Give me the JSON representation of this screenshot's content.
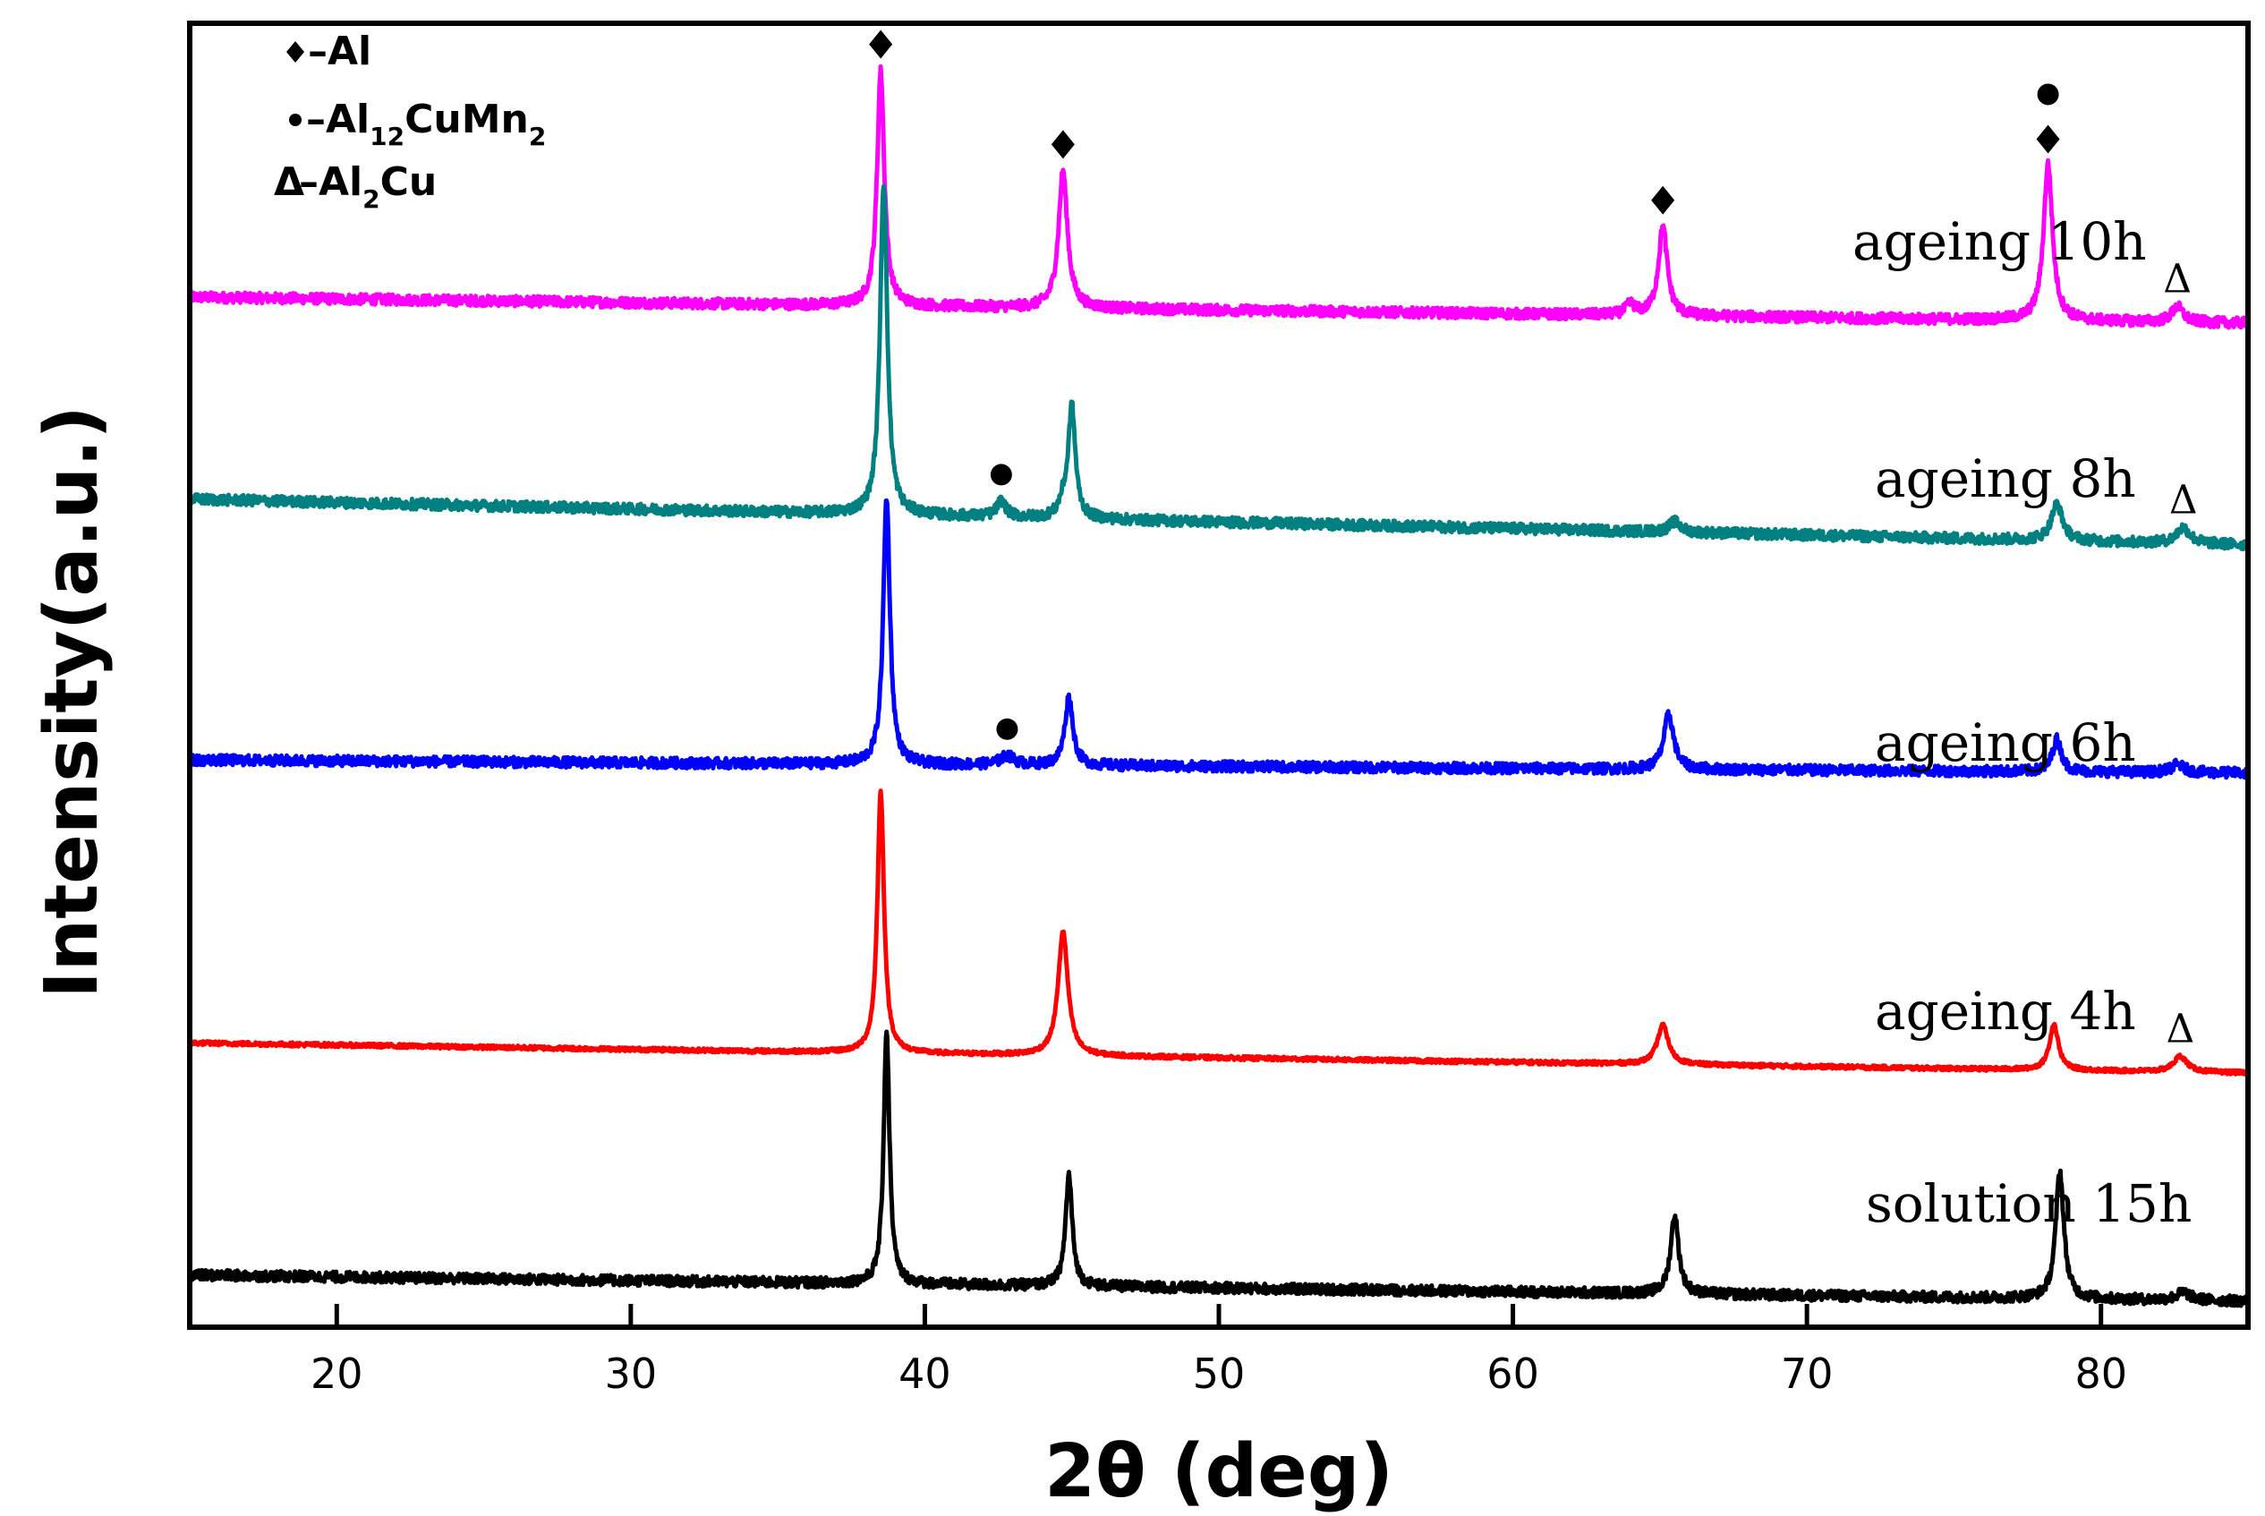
{
  "chart_data": {
    "type": "line",
    "title": "",
    "xlabel": "2θ (deg)",
    "ylabel": "Intensity(a.u.)",
    "xlim": [
      15,
      85
    ],
    "xticks": [
      20,
      30,
      40,
      50,
      60,
      70,
      80
    ],
    "xtick_labels": [
      "20",
      "30",
      "40",
      "50",
      "60",
      "70",
      "80"
    ],
    "yticks_shown": false,
    "legend": {
      "position": "top-left",
      "entries": [
        {
          "marker": "◆",
          "text": "–Al",
          "sub": "",
          "text2": "",
          "sub2": ""
        },
        {
          "marker": "●",
          "text": "–Al",
          "sub": "12",
          "text2": "CuMn",
          "sub2": "2"
        },
        {
          "marker": "Δ",
          "text": "–Al",
          "sub": "2",
          "text2": "Cu",
          "sub2": ""
        }
      ]
    },
    "series": [
      {
        "name": "ageing 10h",
        "color": "#ff00ff",
        "baseline_start": 0.79,
        "baseline_end": 0.77,
        "noise": 0.004,
        "peaks": [
          {
            "x": 38.5,
            "h": 0.18,
            "w": 0.16,
            "marker": "◆"
          },
          {
            "x": 44.7,
            "h": 0.105,
            "w": 0.2,
            "marker": "◆"
          },
          {
            "x": 64.0,
            "h": 0.008,
            "w": 0.2,
            "marker": ""
          },
          {
            "x": 65.1,
            "h": 0.068,
            "w": 0.2,
            "marker": "◆"
          },
          {
            "x": 78.2,
            "h": 0.12,
            "w": 0.2,
            "marker": "◆●"
          },
          {
            "x": 82.6,
            "h": 0.012,
            "w": 0.25,
            "marker": "Δ"
          }
        ]
      },
      {
        "name": "ageing 8h",
        "color": "#008080",
        "baseline_start": 0.635,
        "baseline_end": 0.6,
        "noise": 0.004,
        "peaks": [
          {
            "x": 38.6,
            "h": 0.255,
            "w": 0.16,
            "marker": ""
          },
          {
            "x": 42.6,
            "h": 0.012,
            "w": 0.2,
            "marker": "●"
          },
          {
            "x": 44.7,
            "h": 0.01,
            "w": 0.18,
            "marker": ""
          },
          {
            "x": 45.0,
            "h": 0.085,
            "w": 0.16,
            "marker": ""
          },
          {
            "x": 65.5,
            "h": 0.008,
            "w": 0.25,
            "marker": ""
          },
          {
            "x": 78.5,
            "h": 0.028,
            "w": 0.25,
            "marker": ""
          },
          {
            "x": 82.8,
            "h": 0.012,
            "w": 0.3,
            "marker": "Δ"
          }
        ]
      },
      {
        "name": "ageing 6h",
        "color": "#0000ff",
        "baseline_start": 0.435,
        "baseline_end": 0.425,
        "noise": 0.004,
        "peaks": [
          {
            "x": 38.7,
            "h": 0.205,
            "w": 0.15,
            "marker": ""
          },
          {
            "x": 42.8,
            "h": 0.007,
            "w": 0.3,
            "marker": "●"
          },
          {
            "x": 44.9,
            "h": 0.052,
            "w": 0.18,
            "marker": ""
          },
          {
            "x": 65.3,
            "h": 0.042,
            "w": 0.22,
            "marker": ""
          },
          {
            "x": 78.5,
            "h": 0.025,
            "w": 0.2,
            "marker": ""
          },
          {
            "x": 82.6,
            "h": 0.006,
            "w": 0.3,
            "marker": ""
          }
        ]
      },
      {
        "name": "ageing 4h",
        "color": "#ff0000",
        "baseline_start": 0.218,
        "baseline_end": 0.195,
        "noise": 0.0015,
        "peaks": [
          {
            "x": 38.5,
            "h": 0.2,
            "w": 0.15,
            "marker": ""
          },
          {
            "x": 44.7,
            "h": 0.095,
            "w": 0.22,
            "marker": ""
          },
          {
            "x": 65.1,
            "h": 0.03,
            "w": 0.25,
            "marker": ""
          },
          {
            "x": 78.4,
            "h": 0.035,
            "w": 0.2,
            "marker": ""
          },
          {
            "x": 82.7,
            "h": 0.012,
            "w": 0.3,
            "marker": "Δ"
          }
        ]
      },
      {
        "name": "solution 15h",
        "color": "#000000",
        "baseline_start": 0.04,
        "baseline_end": 0.02,
        "noise": 0.004,
        "peaks": [
          {
            "x": 38.7,
            "h": 0.195,
            "w": 0.13,
            "marker": ""
          },
          {
            "x": 44.9,
            "h": 0.085,
            "w": 0.15,
            "marker": ""
          },
          {
            "x": 65.5,
            "h": 0.06,
            "w": 0.18,
            "marker": ""
          },
          {
            "x": 78.6,
            "h": 0.098,
            "w": 0.18,
            "marker": ""
          },
          {
            "x": 82.8,
            "h": 0.006,
            "w": 0.3,
            "marker": ""
          }
        ]
      }
    ]
  }
}
